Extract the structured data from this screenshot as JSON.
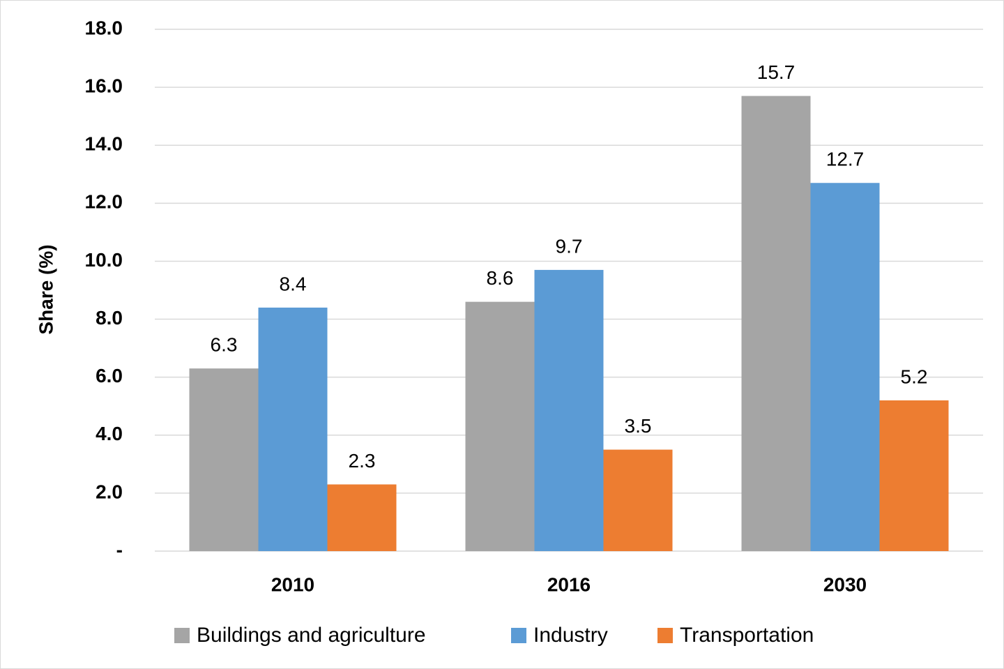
{
  "chart_data": {
    "type": "bar",
    "y_label": "Share (%)",
    "categories": [
      "2010",
      "2016",
      "2030"
    ],
    "series": [
      {
        "name": "Buildings and agriculture",
        "color": "#a5a5a5",
        "values": [
          6.3,
          8.6,
          15.7
        ]
      },
      {
        "name": "Industry",
        "color": "#5b9bd5",
        "values": [
          8.4,
          9.7,
          12.7
        ]
      },
      {
        "name": "Transportation",
        "color": "#ed7d31",
        "values": [
          2.3,
          3.5,
          5.2
        ]
      }
    ],
    "ylim": [
      0,
      18
    ],
    "yticks": [
      {
        "value": 0,
        "label": "-"
      },
      {
        "value": 2,
        "label": "2.0"
      },
      {
        "value": 4,
        "label": "4.0"
      },
      {
        "value": 6,
        "label": "6.0"
      },
      {
        "value": 8,
        "label": "8.0"
      },
      {
        "value": 10,
        "label": "10.0"
      },
      {
        "value": 12,
        "label": "12.0"
      },
      {
        "value": 14,
        "label": "14.0"
      },
      {
        "value": 16,
        "label": "16.0"
      },
      {
        "value": 18,
        "label": "18.0"
      }
    ],
    "grid": true
  }
}
